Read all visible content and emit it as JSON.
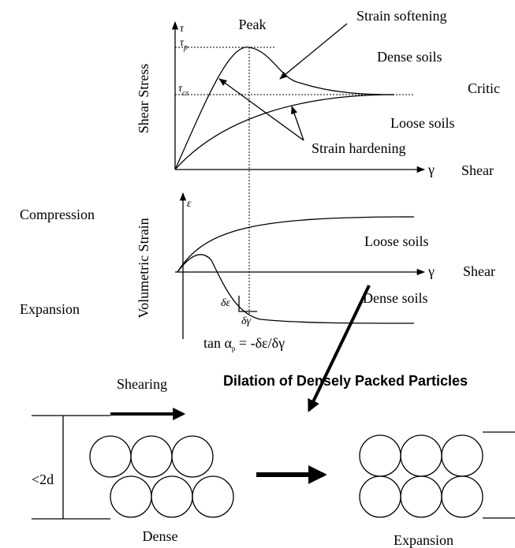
{
  "stress_plot": {
    "peak_label": "Peak",
    "strain_softening": "Strain softening",
    "dense_soils": "Dense soils",
    "critical": "Critic",
    "loose_soils": "Loose soils",
    "strain_hardening": "Strain hardening",
    "y_axis_label": "Shear Stress",
    "y_symbol": "τ",
    "tau_p": {
      "symbol": "τ",
      "sub": "p"
    },
    "tau_cs": {
      "symbol": "τ",
      "sub": "cs"
    },
    "x_symbol": "γ",
    "x_label": "Shear"
  },
  "volume_plot": {
    "compression": "Compression",
    "expansion": "Expansion",
    "y_axis_label": "Volumetric Strain",
    "y_symbol": "ε",
    "loose_soils": "Loose soils",
    "dense_soils": "Dense soils",
    "x_symbol": "γ",
    "x_label": "Shear",
    "d_eps": "δε",
    "d_gamma": "δγ",
    "formula": {
      "lead": "tan α",
      "sub": "p",
      "rest": " = -δε/δγ"
    }
  },
  "particles": {
    "shearing": "Shearing",
    "title": "Dilation of Densely Packed Particles",
    "width_label": "<2d",
    "dense": "Dense",
    "expansion": "Expansion"
  }
}
